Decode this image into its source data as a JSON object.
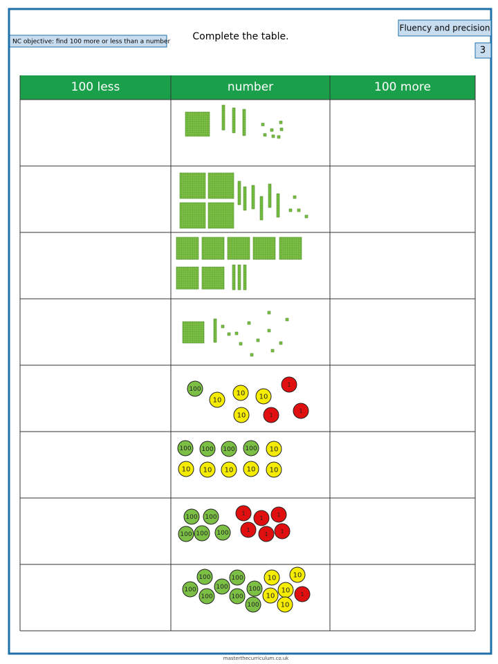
{
  "header": {
    "objective": "NC objective: find 100 more or less than a number",
    "instruction": "Complete the table.",
    "category": "Fluency and precision",
    "page_number": "3"
  },
  "table": {
    "columns": [
      "100 less",
      "number",
      "100 more"
    ],
    "counter_rows": [
      [
        "100",
        "10",
        "10",
        "10",
        "10",
        "1",
        "1",
        "1"
      ],
      [
        "100",
        "100",
        "100",
        "100",
        "10",
        "10",
        "10",
        "10",
        "10",
        "10"
      ],
      [
        "100",
        "100",
        "100",
        "100",
        "100",
        "1",
        "1",
        "1",
        "1",
        "1",
        "1"
      ],
      [
        "100",
        "100",
        "100",
        "100",
        "100",
        "100",
        "100",
        "100",
        "10",
        "10",
        "10",
        "10",
        "10",
        "1"
      ]
    ]
  },
  "footer": {
    "website": "masterthecurriculum.co.uk"
  }
}
